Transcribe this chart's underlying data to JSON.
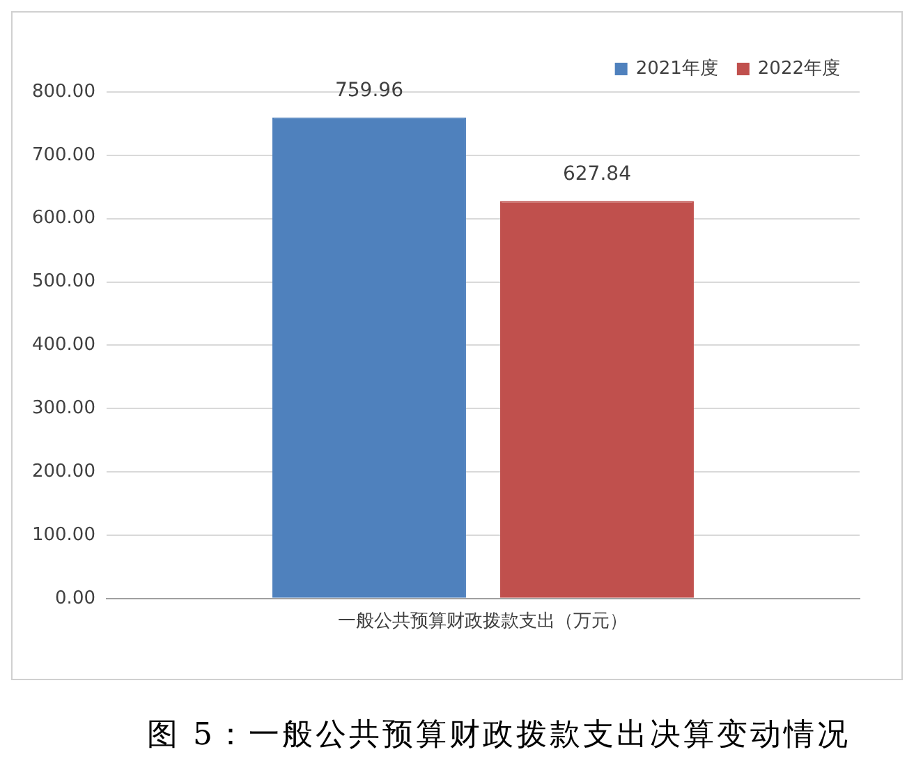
{
  "chart_data": {
    "type": "bar",
    "title": "图 5：一般公共预算财政拨款支出决算变动情况",
    "categories": [
      "一般公共预算财政拨款支出（万元）"
    ],
    "series": [
      {
        "name": "2021年度",
        "color": "#4f81bd",
        "values": [
          759.96
        ]
      },
      {
        "name": "2022年度",
        "color": "#c0504d",
        "values": [
          627.84
        ]
      }
    ],
    "ylim": [
      0,
      800
    ],
    "yticks": [
      {
        "value": 0,
        "label": "0.00"
      },
      {
        "value": 100,
        "label": "100.00"
      },
      {
        "value": 200,
        "label": "200.00"
      },
      {
        "value": 300,
        "label": "300.00"
      },
      {
        "value": 400,
        "label": "400.00"
      },
      {
        "value": 500,
        "label": "500.00"
      },
      {
        "value": 600,
        "label": "600.00"
      },
      {
        "value": 700,
        "label": "700.00"
      },
      {
        "value": 800,
        "label": "800.00"
      }
    ],
    "grid": "y",
    "legend": "top right",
    "data_labels": true
  }
}
